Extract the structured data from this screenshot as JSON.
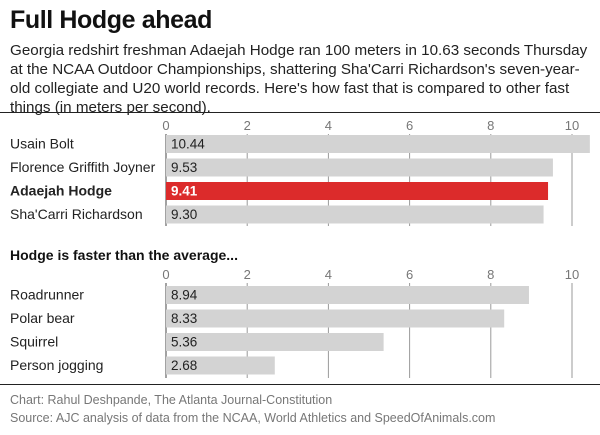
{
  "title": "Full Hodge ahead",
  "subtitle": "Georgia redshirt freshman Adaejah Hodge ran 100 meters in 10.63 seconds Thursday at the NCAA Outdoor Championships, shattering Sha'Carri Richardson's seven-year-old collegiate and U20 world records. Here's how fast that is compared to other fast things (in meters per second).",
  "section_title": "Hodge is faster than the average...",
  "credit": "Chart: Rahul Deshpande, The Atlanta Journal-Constitution",
  "source": "Source: AJC analysis of data from the NCAA, World Athletics and SpeedOfAnimals.com",
  "colors": {
    "bar": "#d3d3d3",
    "highlight": "#dc2b2b",
    "grid": "#9a9a9a"
  },
  "chart_data": [
    {
      "type": "bar",
      "orientation": "horizontal",
      "categories": [
        "Usain Bolt",
        "Florence Griffith Joyner",
        "Adaejah Hodge",
        "Sha'Carri Richardson"
      ],
      "values": [
        10.44,
        9.53,
        9.41,
        9.3
      ],
      "value_labels": [
        "10.44",
        "9.53",
        "9.41",
        "9.30"
      ],
      "highlight": "Adaejah Hodge",
      "xlim": [
        0,
        10
      ],
      "xticks": [
        "0",
        "2",
        "4",
        "6",
        "8",
        "10"
      ],
      "grid": true
    },
    {
      "type": "bar",
      "orientation": "horizontal",
      "categories": [
        "Roadrunner",
        "Polar bear",
        "Squirrel",
        "Person jogging"
      ],
      "values": [
        8.94,
        8.33,
        5.36,
        2.68
      ],
      "value_labels": [
        "8.94",
        "8.33",
        "5.36",
        "2.68"
      ],
      "xlim": [
        0,
        10
      ],
      "xticks": [
        "0",
        "2",
        "4",
        "6",
        "8",
        "10"
      ],
      "grid": true
    }
  ]
}
